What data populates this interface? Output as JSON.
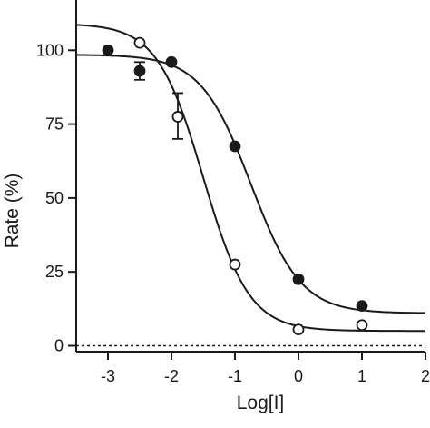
{
  "chart_data": {
    "type": "scatter",
    "xlabel": "Log[I]",
    "ylabel": "Rate (%)",
    "xlim": [
      -3.5,
      2
    ],
    "ylim": [
      -2,
      117
    ],
    "x_ticks": [
      -3,
      -2,
      -1,
      0,
      1,
      2
    ],
    "x_tick_labels": [
      "-3",
      "-2",
      "-1",
      "0",
      "1",
      "2"
    ],
    "y_ticks": [
      0,
      25,
      50,
      75,
      100
    ],
    "y_tick_labels": [
      "0",
      "25",
      "50",
      "75",
      "100"
    ],
    "grid": false,
    "reference_line": {
      "y": 0,
      "style": "dashed"
    },
    "series": [
      {
        "marker": "filled-circle",
        "color": "#1a1a1a",
        "points": [
          {
            "x": -3.0,
            "y": 100
          },
          {
            "x": -2.5,
            "y": 93
          },
          {
            "x": -2.0,
            "y": 96
          },
          {
            "x": -1.0,
            "y": 67.5
          },
          {
            "x": 0.0,
            "y": 22.5
          },
          {
            "x": 1.0,
            "y": 13.5
          }
        ],
        "error_bars": [
          {
            "x": -2.5,
            "y": 93,
            "lower": 90,
            "upper": 96
          }
        ],
        "fit": {
          "model": "sigmoid",
          "top": 98.5,
          "bottom": 11,
          "log_ic50": -0.75,
          "hill": 1.1
        }
      },
      {
        "marker": "open-circle",
        "color": "#1a1a1a",
        "points": [
          {
            "x": -2.5,
            "y": 102.5
          },
          {
            "x": -1.9,
            "y": 77.5
          },
          {
            "x": -1.0,
            "y": 27.5
          },
          {
            "x": 0.0,
            "y": 5.5
          },
          {
            "x": 1.0,
            "y": 7
          }
        ],
        "error_bars": [
          {
            "x": -1.9,
            "y": 77.5,
            "lower": 70,
            "upper": 85.5
          }
        ],
        "fit": {
          "model": "sigmoid",
          "top": 109,
          "bottom": 5,
          "log_ic50": -1.5,
          "hill": 1.2
        }
      }
    ]
  }
}
